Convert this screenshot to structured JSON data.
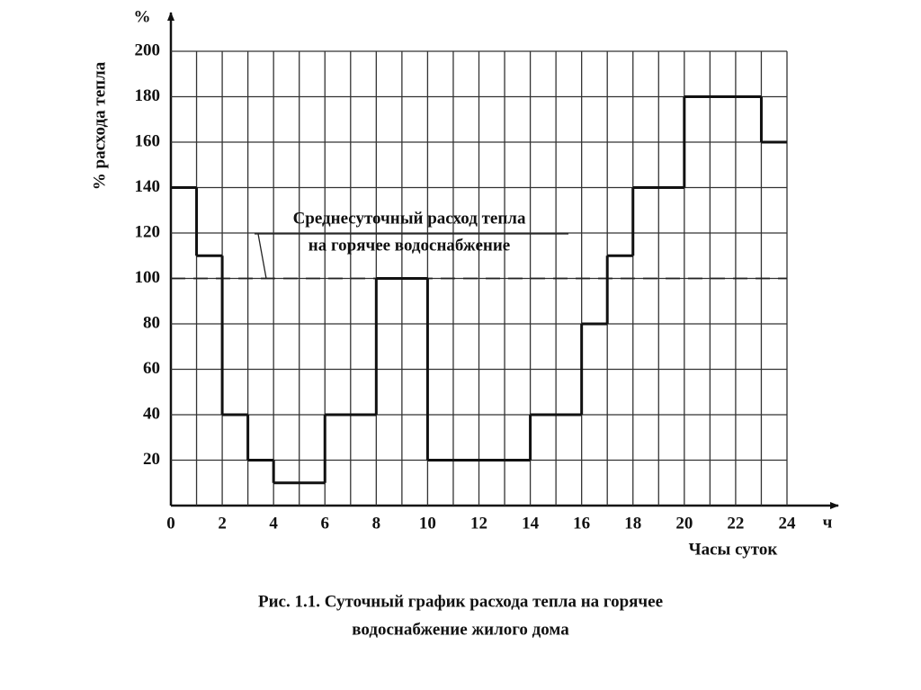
{
  "chart_data": {
    "type": "step",
    "y_unit": "%",
    "y_label": "% расхода тепла",
    "x_unit": "ч",
    "x_label": "Часы суток",
    "caption": [
      "Рис. 1.1. Суточный график расхода тепла на горячее",
      "водоснабжение жилого дома"
    ],
    "x": [
      0,
      1,
      2,
      3,
      4,
      5,
      6,
      7,
      8,
      9,
      10,
      11,
      12,
      13,
      14,
      15,
      16,
      17,
      18,
      19,
      20,
      21,
      22,
      23
    ],
    "values": [
      140,
      110,
      40,
      20,
      10,
      10,
      40,
      40,
      100,
      100,
      20,
      20,
      20,
      20,
      40,
      40,
      80,
      110,
      140,
      140,
      180,
      180,
      180,
      160
    ],
    "color": "#111",
    "xlim": [
      0,
      24
    ],
    "xticks": [
      0,
      2,
      4,
      6,
      8,
      10,
      12,
      14,
      16,
      18,
      20,
      22,
      24
    ],
    "ylim": [
      0,
      200
    ],
    "yticks": [
      20,
      40,
      60,
      80,
      100,
      120,
      140,
      160,
      180,
      200
    ],
    "grid": true,
    "reference_line": {
      "value": 100,
      "label": [
        "Среднесуточный расход тепла",
        "на горячее водоснабжение"
      ]
    }
  }
}
